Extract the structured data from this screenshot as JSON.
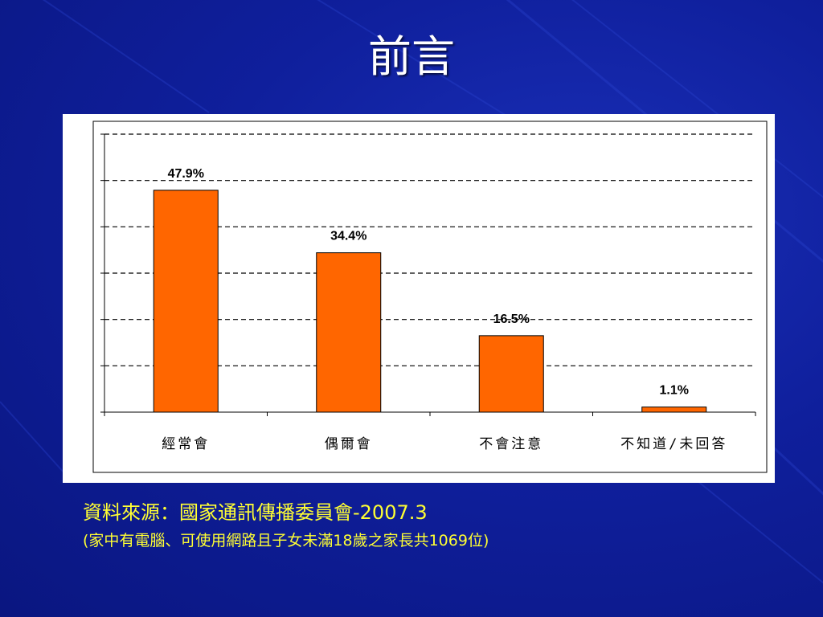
{
  "slide": {
    "title": "前言",
    "source": "資料來源：國家通訊傳播委員會-2007.3",
    "note": "(家中有電腦、可使用網路且子女未滿18歲之家長共1069位)"
  },
  "colors": {
    "background": "#0f1f9c",
    "bar_fill": "#ff6600",
    "text_yellow": "#ffff33"
  },
  "chart_data": {
    "type": "bar",
    "categories": [
      "經常會",
      "偶爾會",
      "不會注意",
      "不知道/未回答"
    ],
    "values": [
      47.9,
      34.4,
      16.5,
      1.1
    ],
    "data_labels": [
      "47.9%",
      "34.4%",
      "16.5%",
      "1.1%"
    ],
    "ylim": [
      0,
      60
    ],
    "grid": "dashed horizontal",
    "legend": "none"
  }
}
